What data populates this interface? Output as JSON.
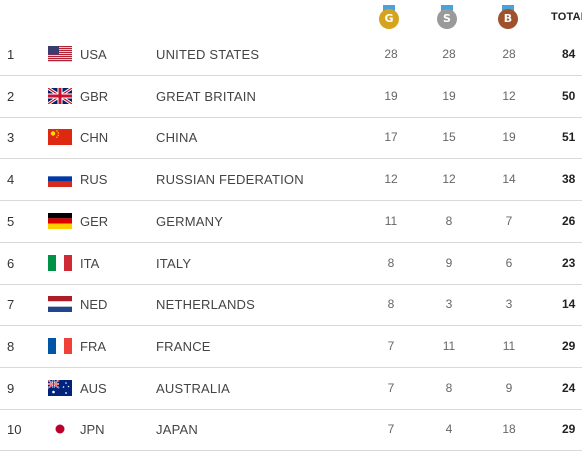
{
  "header": {
    "gold_icon": "gold-medal-icon",
    "gold_letter": "G",
    "silver_icon": "silver-medal-icon",
    "silver_letter": "S",
    "bronze_icon": "bronze-medal-icon",
    "bronze_letter": "B",
    "total_label": "TOTAL"
  },
  "colors": {
    "gold": "#d6a31e",
    "silver": "#9a9a9a",
    "bronze": "#a0522d",
    "row_divider": "#d9d9d9"
  },
  "rows": [
    {
      "rank": "1",
      "flag": "usa-flag-icon",
      "code": "USA",
      "name": "UNITED STATES",
      "gold": "28",
      "silver": "28",
      "bronze": "28",
      "total": "84"
    },
    {
      "rank": "2",
      "flag": "gbr-flag-icon",
      "code": "GBR",
      "name": "GREAT BRITAIN",
      "gold": "19",
      "silver": "19",
      "bronze": "12",
      "total": "50"
    },
    {
      "rank": "3",
      "flag": "chn-flag-icon",
      "code": "CHN",
      "name": "CHINA",
      "gold": "17",
      "silver": "15",
      "bronze": "19",
      "total": "51"
    },
    {
      "rank": "4",
      "flag": "rus-flag-icon",
      "code": "RUS",
      "name": "RUSSIAN FEDERATION",
      "gold": "12",
      "silver": "12",
      "bronze": "14",
      "total": "38"
    },
    {
      "rank": "5",
      "flag": "ger-flag-icon",
      "code": "GER",
      "name": "GERMANY",
      "gold": "11",
      "silver": "8",
      "bronze": "7",
      "total": "26"
    },
    {
      "rank": "6",
      "flag": "ita-flag-icon",
      "code": "ITA",
      "name": "ITALY",
      "gold": "8",
      "silver": "9",
      "bronze": "6",
      "total": "23"
    },
    {
      "rank": "7",
      "flag": "ned-flag-icon",
      "code": "NED",
      "name": "NETHERLANDS",
      "gold": "8",
      "silver": "3",
      "bronze": "3",
      "total": "14"
    },
    {
      "rank": "8",
      "flag": "fra-flag-icon",
      "code": "FRA",
      "name": "FRANCE",
      "gold": "7",
      "silver": "11",
      "bronze": "11",
      "total": "29"
    },
    {
      "rank": "9",
      "flag": "aus-flag-icon",
      "code": "AUS",
      "name": "AUSTRALIA",
      "gold": "7",
      "silver": "8",
      "bronze": "9",
      "total": "24"
    },
    {
      "rank": "10",
      "flag": "jpn-flag-icon",
      "code": "JPN",
      "name": "JAPAN",
      "gold": "7",
      "silver": "4",
      "bronze": "18",
      "total": "29"
    }
  ]
}
